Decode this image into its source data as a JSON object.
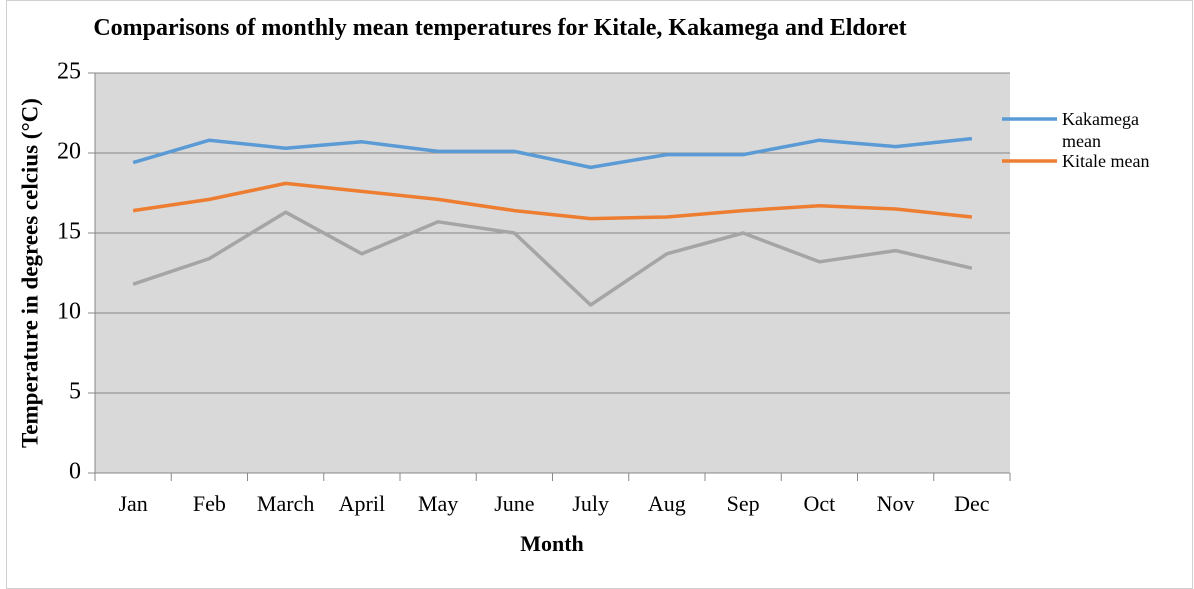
{
  "chart_data": {
    "type": "line",
    "title": "Comparisons of monthly mean temperatures for Kitale, Kakamega and Eldoret",
    "x_label": "Month",
    "y_label": "Temperature in degrees celcius (°C)",
    "categories": [
      "Jan",
      "Feb",
      "March",
      "April",
      "May",
      "June",
      "July",
      "Aug",
      "Sep",
      "Oct",
      "Nov",
      "Dec"
    ],
    "series": [
      {
        "name": "Kakamega mean",
        "color": "#5b9bd5",
        "values": [
          19.4,
          20.8,
          20.3,
          20.7,
          20.1,
          20.1,
          19.1,
          19.9,
          19.9,
          20.8,
          20.4,
          20.9
        ]
      },
      {
        "name": "Kitale mean",
        "color": "#ed7d31",
        "values": [
          16.4,
          17.1,
          18.1,
          17.6,
          17.1,
          16.4,
          15.9,
          16.0,
          16.4,
          16.7,
          16.5,
          16.0
        ]
      },
      {
        "color": "#a5a5a5",
        "values": [
          11.8,
          13.4,
          16.3,
          13.7,
          15.7,
          15.0,
          10.5,
          13.7,
          15.0,
          13.2,
          13.9,
          12.8
        ]
      }
    ],
    "ylim": [
      0,
      25
    ],
    "yticks": [
      0,
      5,
      10,
      15,
      20,
      25
    ],
    "grid": true,
    "legend": "right"
  }
}
